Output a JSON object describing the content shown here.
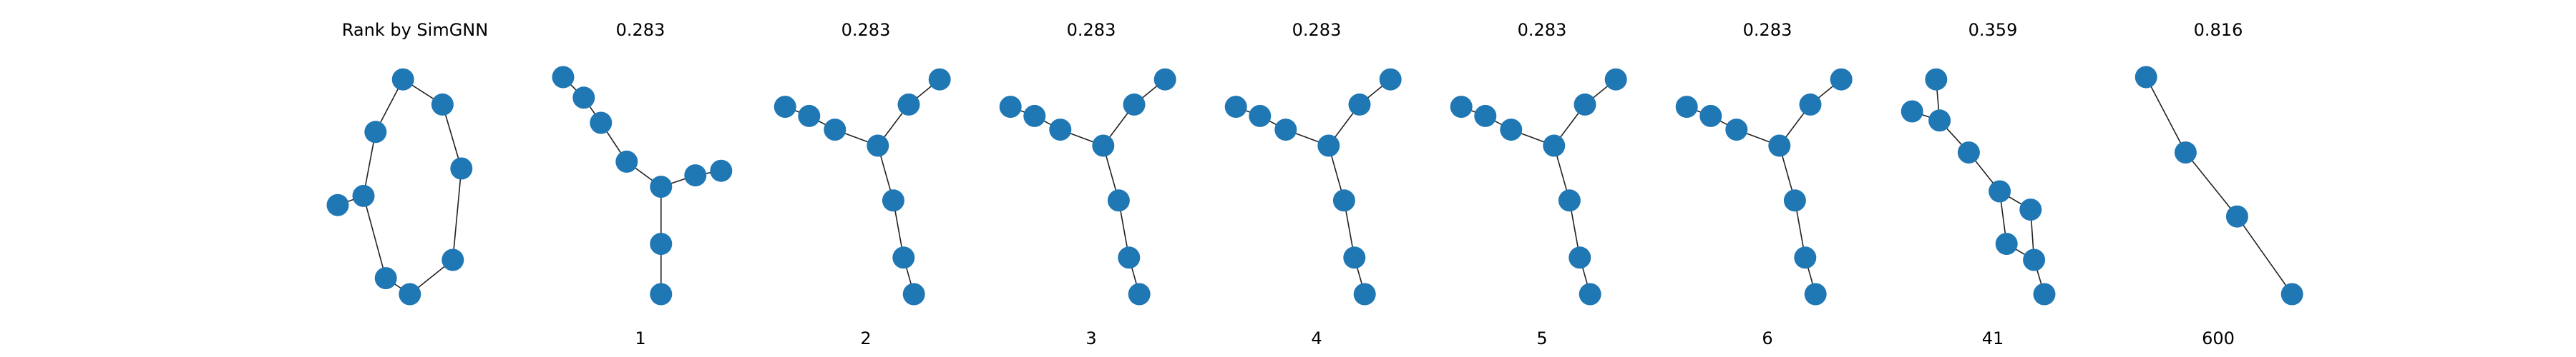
{
  "figure": {
    "header_label": "Rank by SimGNN",
    "node_color": "#1f77b4",
    "edge_color": "#222222",
    "panels": [
      {
        "id": "query",
        "score": null,
        "rank": null,
        "nodes": [
          [
            0.43,
            0.06
          ],
          [
            0.66,
            0.17
          ],
          [
            0.27,
            0.29
          ],
          [
            0.77,
            0.45
          ],
          [
            0.05,
            0.61
          ],
          [
            0.2,
            0.57
          ],
          [
            0.72,
            0.85
          ],
          [
            0.33,
            0.93
          ],
          [
            0.47,
            1.0
          ]
        ],
        "edges": [
          [
            0,
            1
          ],
          [
            1,
            3
          ],
          [
            3,
            6
          ],
          [
            6,
            8
          ],
          [
            8,
            7
          ],
          [
            7,
            5
          ],
          [
            5,
            4
          ],
          [
            5,
            2
          ],
          [
            2,
            0
          ]
        ]
      },
      {
        "id": "candidate-1",
        "score": "0.283",
        "rank": "1",
        "nodes": [
          [
            0.05,
            0.05
          ],
          [
            0.17,
            0.14
          ],
          [
            0.27,
            0.25
          ],
          [
            0.42,
            0.42
          ],
          [
            0.62,
            0.53
          ],
          [
            0.82,
            0.48
          ],
          [
            0.97,
            0.46
          ],
          [
            0.62,
            0.78
          ],
          [
            0.62,
            1.0
          ]
        ],
        "edges": [
          [
            0,
            1
          ],
          [
            1,
            2
          ],
          [
            2,
            3
          ],
          [
            3,
            4
          ],
          [
            4,
            5
          ],
          [
            5,
            6
          ],
          [
            4,
            7
          ],
          [
            7,
            8
          ]
        ]
      },
      {
        "id": "candidate-2",
        "score": "0.283",
        "rank": "2",
        "nodes": [
          [
            0.03,
            0.18
          ],
          [
            0.17,
            0.22
          ],
          [
            0.32,
            0.28
          ],
          [
            0.57,
            0.35
          ],
          [
            0.75,
            0.17
          ],
          [
            0.93,
            0.06
          ],
          [
            0.66,
            0.59
          ],
          [
            0.72,
            0.84
          ],
          [
            0.78,
            1.0
          ]
        ],
        "edges": [
          [
            0,
            1
          ],
          [
            1,
            2
          ],
          [
            2,
            3
          ],
          [
            3,
            4
          ],
          [
            4,
            5
          ],
          [
            3,
            6
          ],
          [
            6,
            7
          ],
          [
            7,
            8
          ]
        ]
      },
      {
        "id": "candidate-3",
        "score": "0.283",
        "rank": "3",
        "nodes": [
          [
            0.03,
            0.18
          ],
          [
            0.17,
            0.22
          ],
          [
            0.32,
            0.28
          ],
          [
            0.57,
            0.35
          ],
          [
            0.75,
            0.17
          ],
          [
            0.93,
            0.06
          ],
          [
            0.66,
            0.59
          ],
          [
            0.72,
            0.84
          ],
          [
            0.78,
            1.0
          ]
        ],
        "edges": [
          [
            0,
            1
          ],
          [
            1,
            2
          ],
          [
            2,
            3
          ],
          [
            3,
            4
          ],
          [
            4,
            5
          ],
          [
            3,
            6
          ],
          [
            6,
            7
          ],
          [
            7,
            8
          ]
        ]
      },
      {
        "id": "candidate-4",
        "score": "0.283",
        "rank": "4",
        "nodes": [
          [
            0.03,
            0.18
          ],
          [
            0.17,
            0.22
          ],
          [
            0.32,
            0.28
          ],
          [
            0.57,
            0.35
          ],
          [
            0.75,
            0.17
          ],
          [
            0.93,
            0.06
          ],
          [
            0.66,
            0.59
          ],
          [
            0.72,
            0.84
          ],
          [
            0.78,
            1.0
          ]
        ],
        "edges": [
          [
            0,
            1
          ],
          [
            1,
            2
          ],
          [
            2,
            3
          ],
          [
            3,
            4
          ],
          [
            4,
            5
          ],
          [
            3,
            6
          ],
          [
            6,
            7
          ],
          [
            7,
            8
          ]
        ]
      },
      {
        "id": "candidate-5",
        "score": "0.283",
        "rank": "5",
        "nodes": [
          [
            0.03,
            0.18
          ],
          [
            0.17,
            0.22
          ],
          [
            0.32,
            0.28
          ],
          [
            0.57,
            0.35
          ],
          [
            0.75,
            0.17
          ],
          [
            0.93,
            0.06
          ],
          [
            0.66,
            0.59
          ],
          [
            0.72,
            0.84
          ],
          [
            0.78,
            1.0
          ]
        ],
        "edges": [
          [
            0,
            1
          ],
          [
            1,
            2
          ],
          [
            2,
            3
          ],
          [
            3,
            4
          ],
          [
            4,
            5
          ],
          [
            3,
            6
          ],
          [
            6,
            7
          ],
          [
            7,
            8
          ]
        ]
      },
      {
        "id": "candidate-6",
        "score": "0.283",
        "rank": "6",
        "nodes": [
          [
            0.03,
            0.18
          ],
          [
            0.17,
            0.22
          ],
          [
            0.32,
            0.28
          ],
          [
            0.57,
            0.35
          ],
          [
            0.75,
            0.17
          ],
          [
            0.93,
            0.06
          ],
          [
            0.66,
            0.59
          ],
          [
            0.72,
            0.84
          ],
          [
            0.78,
            1.0
          ]
        ],
        "edges": [
          [
            0,
            1
          ],
          [
            1,
            2
          ],
          [
            2,
            3
          ],
          [
            3,
            4
          ],
          [
            4,
            5
          ],
          [
            3,
            6
          ],
          [
            6,
            7
          ],
          [
            7,
            8
          ]
        ]
      },
      {
        "id": "candidate-41",
        "score": "0.359",
        "rank": "41",
        "nodes": [
          [
            0.17,
            0.06
          ],
          [
            0.03,
            0.2
          ],
          [
            0.19,
            0.24
          ],
          [
            0.36,
            0.38
          ],
          [
            0.54,
            0.55
          ],
          [
            0.72,
            0.63
          ],
          [
            0.58,
            0.78
          ],
          [
            0.74,
            0.85
          ],
          [
            0.8,
            1.0
          ]
        ],
        "edges": [
          [
            0,
            2
          ],
          [
            1,
            2
          ],
          [
            2,
            3
          ],
          [
            3,
            4
          ],
          [
            4,
            5
          ],
          [
            4,
            6
          ],
          [
            5,
            7
          ],
          [
            6,
            7
          ],
          [
            7,
            8
          ]
        ]
      },
      {
        "id": "candidate-600",
        "score": "0.816",
        "rank": "600",
        "nodes": [
          [
            0.08,
            0.05
          ],
          [
            0.31,
            0.38
          ],
          [
            0.61,
            0.66
          ],
          [
            0.93,
            1.0
          ]
        ],
        "edges": [
          [
            0,
            1
          ],
          [
            1,
            2
          ],
          [
            2,
            3
          ]
        ]
      }
    ]
  }
}
